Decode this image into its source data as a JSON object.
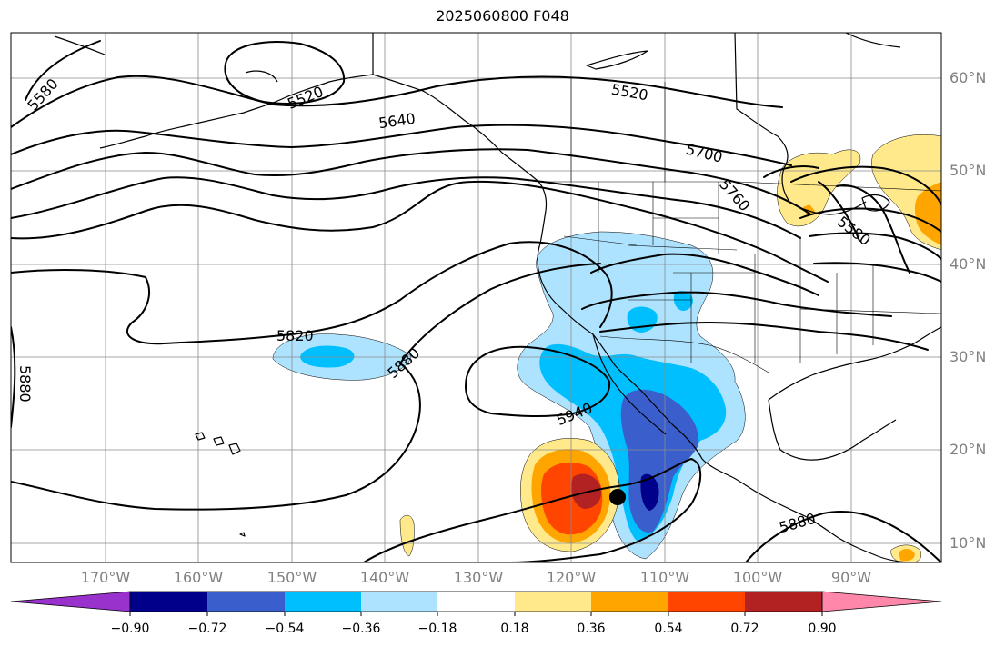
{
  "title": "2025060800 F048",
  "lat_labels": [
    "60°N",
    "50°N",
    "40°N",
    "30°N",
    "20°N",
    "10°N"
  ],
  "lon_labels": [
    "170°W",
    "160°W",
    "150°W",
    "140°W",
    "130°W",
    "120°W",
    "110°W",
    "100°W",
    "90°W"
  ],
  "contour_labels": [
    "5520",
    "5520",
    "5580",
    "5580",
    "5640",
    "5700",
    "5760",
    "5820",
    "5880",
    "5880",
    "5880",
    "5940"
  ],
  "colorbar": {
    "tick_labels": [
      "−0.90",
      "−0.72",
      "−0.54",
      "−0.36",
      "−0.18",
      "0.18",
      "0.36",
      "0.54",
      "0.72",
      "0.90"
    ],
    "colors": [
      "#9932cc",
      "#00008b",
      "#3a5fcd",
      "#00bfff",
      "#aee3ff",
      "#ffffff",
      "#ffe98a",
      "#ffa500",
      "#ff4500",
      "#b22222",
      "#ff88aa"
    ]
  },
  "storm_marker": {
    "lat": 15,
    "lon": -114.5
  }
}
